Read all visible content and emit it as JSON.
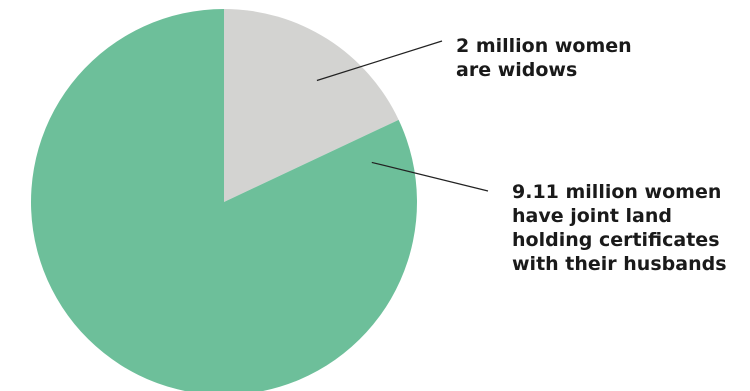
{
  "chart_data": {
    "type": "pie",
    "categories": [
      "2 million women are widows",
      "9.11 million women have joint land holding certificates with their husbands"
    ],
    "values": [
      2,
      9.11
    ],
    "colors": [
      "#d3d3d1",
      "#6dbf9a"
    ],
    "start": "12 o'clock, clockwise",
    "annotations": [
      {
        "lines": [
          "2 million women",
          "are widows"
        ]
      },
      {
        "lines": [
          "9.11 million women",
          "have joint land",
          "holding certificates",
          "with their husbands"
        ]
      }
    ]
  }
}
